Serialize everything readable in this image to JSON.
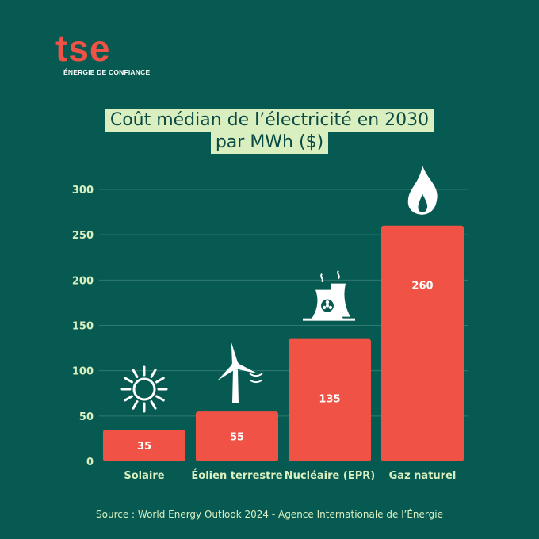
{
  "brand": {
    "name": "tse",
    "tagline": "ÉNERGIE DE CONFIANCE"
  },
  "title": {
    "line1": "Coût médian de l’électricité en 2030",
    "line2": "par MWh ($)"
  },
  "source": "Source : World Energy Outlook 2024 - Agence Internationale de l’Énergie",
  "colors": {
    "background": "#075a52",
    "bar": "#f05245",
    "axis_text": "#d9efc0",
    "title_bg": "#d9efc0",
    "title_text": "#0b4a44",
    "icon": "#ffffff"
  },
  "chart_data": {
    "type": "bar",
    "categories": [
      "Solaire",
      "Éolien terrestre",
      "Nucléaire (EPR)",
      "Gaz naturel"
    ],
    "values": [
      35,
      55,
      135,
      260
    ],
    "value_labels": [
      "35",
      "55",
      "135",
      "260"
    ],
    "icons": [
      "sun-icon",
      "wind-turbine-icon",
      "nuclear-plant-icon",
      "flame-icon"
    ],
    "ylim": [
      0,
      300
    ],
    "yticks": [
      0,
      50,
      100,
      150,
      200,
      250,
      300
    ],
    "ytick_labels": [
      "0",
      "50",
      "100",
      "150",
      "200",
      "250",
      "300"
    ],
    "xlabel": "",
    "ylabel": "",
    "grid": true,
    "legend": "none"
  }
}
